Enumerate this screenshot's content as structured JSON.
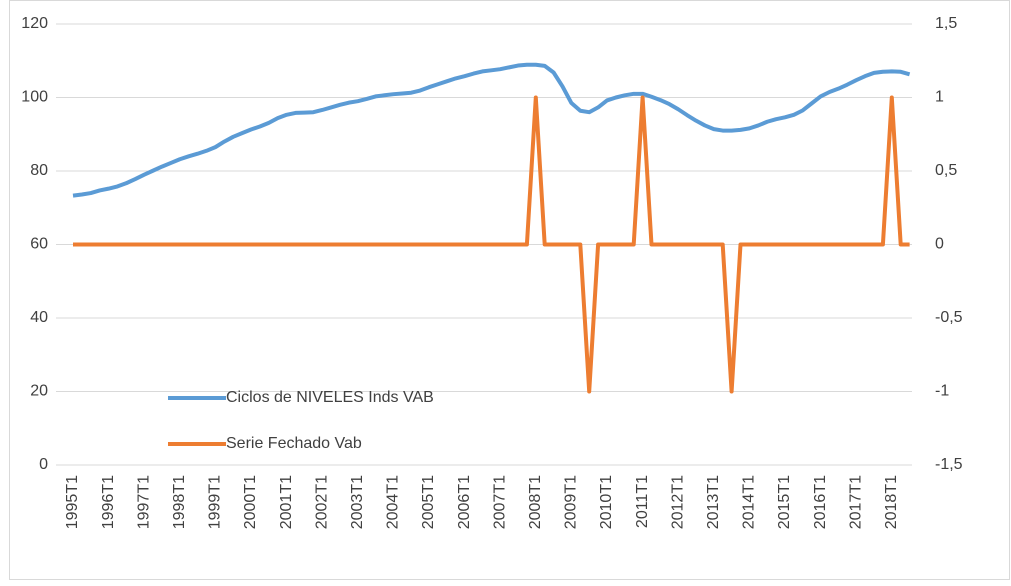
{
  "chart_data": {
    "type": "line",
    "categories": [
      "1995T1",
      null,
      null,
      null,
      "1996T1",
      null,
      null,
      null,
      "1997T1",
      null,
      null,
      null,
      "1998T1",
      null,
      null,
      null,
      "1999T1",
      null,
      null,
      null,
      "2000T1",
      null,
      null,
      null,
      "2001T1",
      null,
      null,
      null,
      "2002T1",
      null,
      null,
      null,
      "2003T1",
      null,
      null,
      null,
      "2004T1",
      null,
      null,
      null,
      "2005T1",
      null,
      null,
      null,
      "2006T1",
      null,
      null,
      null,
      "2007T1",
      null,
      null,
      null,
      "2008T1",
      null,
      null,
      null,
      "2009T1",
      null,
      null,
      null,
      "2010T1",
      null,
      null,
      null,
      "2011T1",
      null,
      null,
      null,
      "2012T1",
      null,
      null,
      null,
      "2013T1",
      null,
      null,
      null,
      "2014T1",
      null,
      null,
      null,
      "2015T1",
      null,
      null,
      null,
      "2016T1",
      null,
      null,
      null,
      "2017T1",
      null,
      null,
      null,
      "2018T1",
      null,
      null
    ],
    "series": [
      {
        "name": "Ciclos de NIVELES Inds VAB",
        "color": "#5b9bd5",
        "values": [
          73.3,
          73.6,
          74.0,
          74.7,
          75.2,
          75.8,
          76.7,
          77.8,
          79.0,
          80.1,
          81.2,
          82.2,
          83.2,
          84.0,
          84.7,
          85.5,
          86.5,
          88.0,
          89.3,
          90.3,
          91.3,
          92.1,
          93.1,
          94.4,
          95.3,
          95.8,
          95.9,
          96.0,
          96.6,
          97.3,
          98.0,
          98.6,
          99.0,
          99.6,
          100.3,
          100.6,
          100.9,
          101.1,
          101.3,
          101.9,
          102.8,
          103.6,
          104.4,
          105.2,
          105.8,
          106.5,
          107.1,
          107.4,
          107.7,
          108.2,
          108.7,
          108.9,
          108.9,
          108.6,
          106.8,
          103.0,
          98.5,
          96.4,
          96.0,
          97.3,
          99.2,
          100.0,
          100.6,
          101.0,
          101.0,
          100.2,
          99.3,
          98.2,
          96.8,
          95.2,
          93.7,
          92.4,
          91.4,
          91.0,
          91.0,
          91.2,
          91.6,
          92.4,
          93.4,
          94.1,
          94.6,
          95.3,
          96.5,
          98.4,
          100.3,
          101.5,
          102.4,
          103.5,
          104.7,
          105.8,
          106.7,
          107.0,
          107.1,
          107.0,
          106.3
        ]
      },
      {
        "name": "Serie Fechado Vab",
        "color": "#ed7d31",
        "axis": "y2",
        "values": [
          0,
          0,
          0,
          0,
          0,
          0,
          0,
          0,
          0,
          0,
          0,
          0,
          0,
          0,
          0,
          0,
          0,
          0,
          0,
          0,
          0,
          0,
          0,
          0,
          0,
          0,
          0,
          0,
          0,
          0,
          0,
          0,
          0,
          0,
          0,
          0,
          0,
          0,
          0,
          0,
          0,
          0,
          0,
          0,
          0,
          0,
          0,
          0,
          0,
          0,
          0,
          0,
          1,
          0,
          0,
          0,
          0,
          0,
          -1,
          0,
          0,
          0,
          0,
          0,
          1,
          0,
          0,
          0,
          0,
          0,
          0,
          0,
          0,
          0,
          -1,
          0,
          0,
          0,
          0,
          0,
          0,
          0,
          0,
          0,
          0,
          0,
          0,
          0,
          0,
          0,
          0,
          0,
          1,
          0,
          0
        ]
      }
    ],
    "ylim": [
      0,
      120
    ],
    "yticks": [
      0,
      20,
      40,
      60,
      80,
      100,
      120
    ],
    "y2lim": [
      -1.5,
      1.5
    ],
    "y2ticks": [
      {
        "value": -1.5,
        "label": "-1,5"
      },
      -1,
      {
        "value": -0.5,
        "label": "-0,5"
      },
      0,
      {
        "value": 0.5,
        "label": "0,5"
      },
      1,
      {
        "value": 1.5,
        "label": "1,5"
      }
    ],
    "grid": true,
    "legend": "lower left"
  }
}
